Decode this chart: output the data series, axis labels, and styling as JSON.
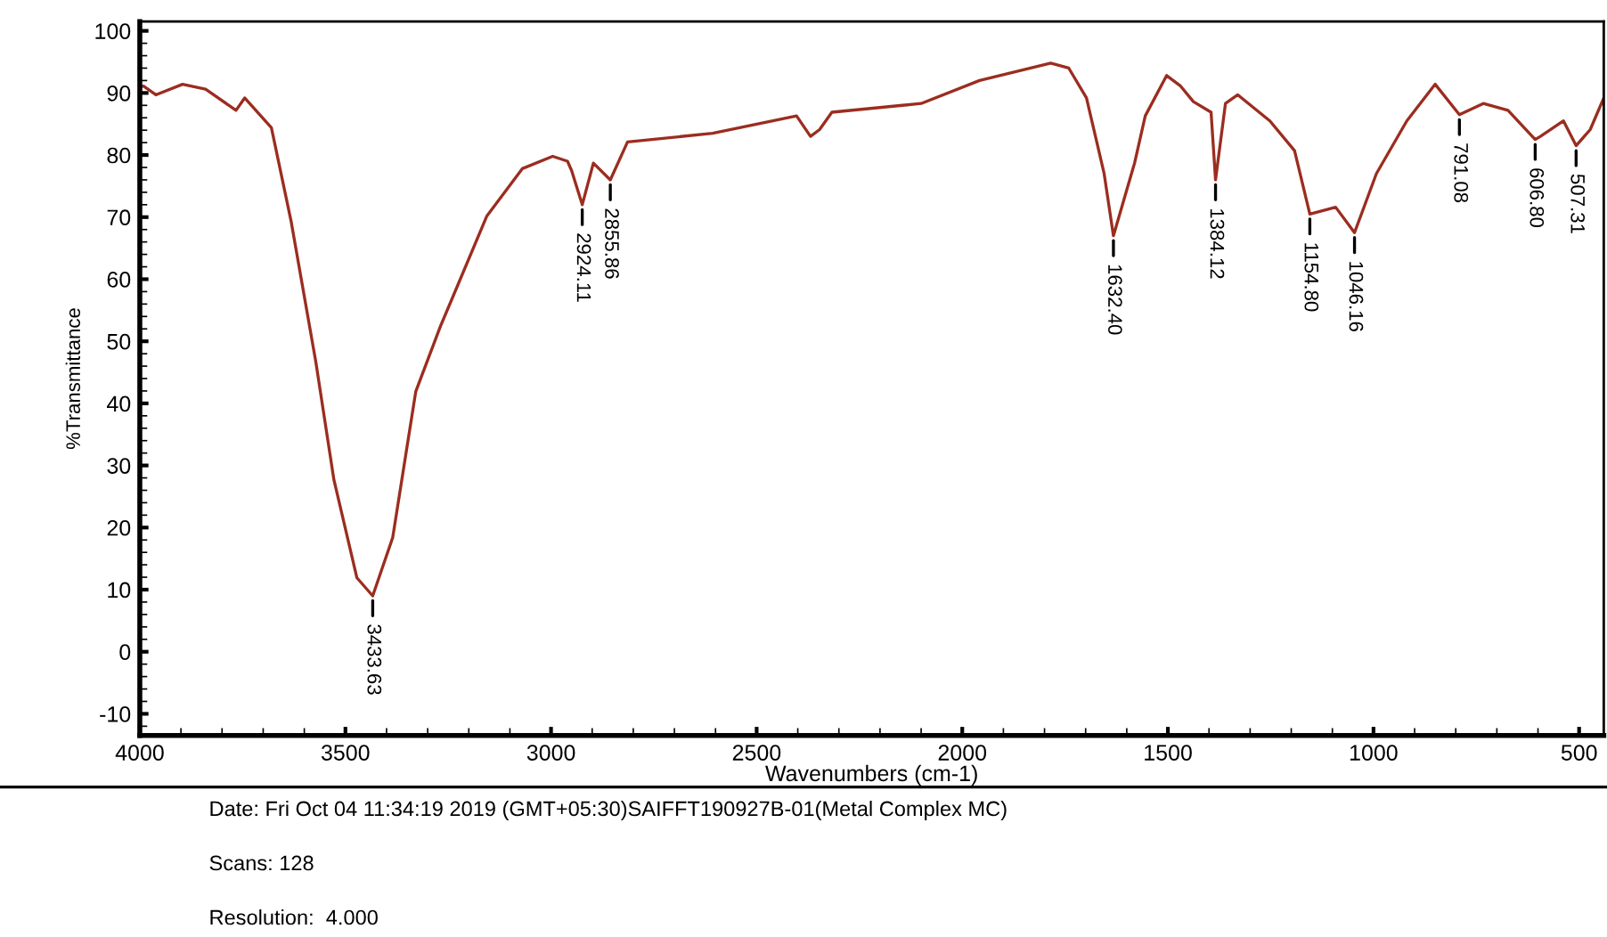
{
  "chart_data": {
    "type": "line",
    "xlabel": "Wavenumbers (cm-1)",
    "ylabel": "%Transmittance",
    "xlim": [
      4000,
      440
    ],
    "ylim": [
      -13.5,
      101.5
    ],
    "xticks": [
      4000,
      3500,
      3000,
      2500,
      2000,
      1500,
      1000,
      500
    ],
    "yticks": [
      -10,
      0,
      10,
      20,
      30,
      40,
      50,
      60,
      70,
      80,
      90,
      100
    ],
    "grid": false,
    "legend": false,
    "marker": "none",
    "line_style": "solid",
    "series": [
      {
        "color": "#9b2d20",
        "x": [
          4000,
          3991,
          3961,
          3896,
          3840,
          3766,
          3745,
          3680,
          3632,
          3572,
          3528,
          3472,
          3433.63,
          3385,
          3329,
          3269,
          3156,
          3070,
          2996,
          2960,
          2950,
          2924.11,
          2897,
          2855.86,
          2814,
          2607,
          2403,
          2369,
          2347,
          2317,
          2100,
          1958,
          1785,
          1741,
          1698,
          1655,
          1632.4,
          1581,
          1555,
          1503,
          1469,
          1438,
          1395,
          1384.12,
          1360,
          1330,
          1252,
          1192,
          1154.8,
          1092,
          1046.16,
          993,
          919,
          850,
          791.08,
          733,
          673,
          606.8,
          594,
          538,
          507.31,
          473,
          440
        ],
        "values": [
          91,
          91.1,
          89.7,
          91.4,
          90.6,
          87.2,
          89.2,
          84.4,
          69.3,
          46.7,
          27.7,
          11.9,
          9,
          18.4,
          41.9,
          52.4,
          70.2,
          77.8,
          79.8,
          79,
          77.5,
          72,
          78.7,
          76,
          82.1,
          83.5,
          86.3,
          83,
          84.1,
          86.9,
          88.3,
          92,
          94.8,
          94,
          89.2,
          77,
          67,
          78.7,
          86.3,
          92.8,
          91.1,
          88.6,
          86.9,
          76,
          88.3,
          89.7,
          85.5,
          80.7,
          70.5,
          71.6,
          67.5,
          77,
          85.5,
          91.4,
          86.5,
          88.3,
          87.2,
          82.5,
          83,
          85.5,
          81.5,
          84.1,
          89.2
        ]
      }
    ],
    "annotations": [
      {
        "text": "3433.63",
        "x": 3433.63,
        "y": 9
      },
      {
        "text": "2924.11",
        "x": 2924.11,
        "y": 72
      },
      {
        "text": "2855.86",
        "x": 2855.86,
        "y": 76
      },
      {
        "text": "1632.40",
        "x": 1632.4,
        "y": 67
      },
      {
        "text": "1384.12",
        "x": 1384.12,
        "y": 76
      },
      {
        "text": "1154.80",
        "x": 1154.8,
        "y": 70.5
      },
      {
        "text": "1046.16",
        "x": 1046.16,
        "y": 67.5
      },
      {
        "text": "791.08",
        "x": 791.08,
        "y": 86.5
      },
      {
        "text": "606.80",
        "x": 606.8,
        "y": 82.5
      },
      {
        "text": "507.31",
        "x": 507.31,
        "y": 81.5
      },
      "Date: Fri Oct 04 11:34:19 2019 (GMT+05:30)SAIFFT190927B-01(Metal Complex MC)",
      "Scans: 128",
      "Resolution:  4.000"
    ]
  }
}
